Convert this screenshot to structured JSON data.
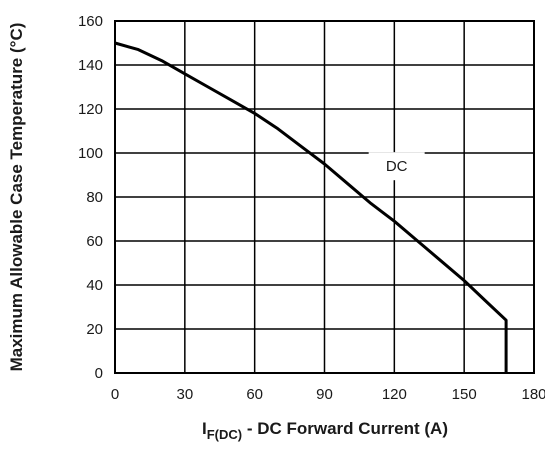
{
  "chart_data": {
    "type": "line",
    "ylabel": "Maximum Allowable Case Temperature (°C)",
    "xlabel": {
      "symbol": "I",
      "subscript": "F(DC)",
      "text": " - DC Forward Current (A)"
    },
    "xlim": [
      0,
      180
    ],
    "ylim": [
      0,
      160
    ],
    "x_ticks": [
      0,
      30,
      60,
      90,
      120,
      150,
      180
    ],
    "y_ticks": [
      0,
      20,
      40,
      60,
      80,
      100,
      120,
      140,
      160
    ],
    "grid": true,
    "annotation": {
      "text": "DC",
      "x": 121,
      "y": 94
    },
    "series": [
      {
        "x": [
          0,
          10,
          20,
          30,
          40,
          50,
          60,
          70,
          80,
          90,
          100,
          110,
          120,
          130,
          140,
          150,
          160,
          168,
          168
        ],
        "y": [
          150,
          147,
          142,
          136,
          130,
          124,
          118,
          111,
          103,
          95,
          86,
          77,
          69,
          60,
          51,
          42,
          32,
          24,
          0
        ]
      }
    ]
  }
}
